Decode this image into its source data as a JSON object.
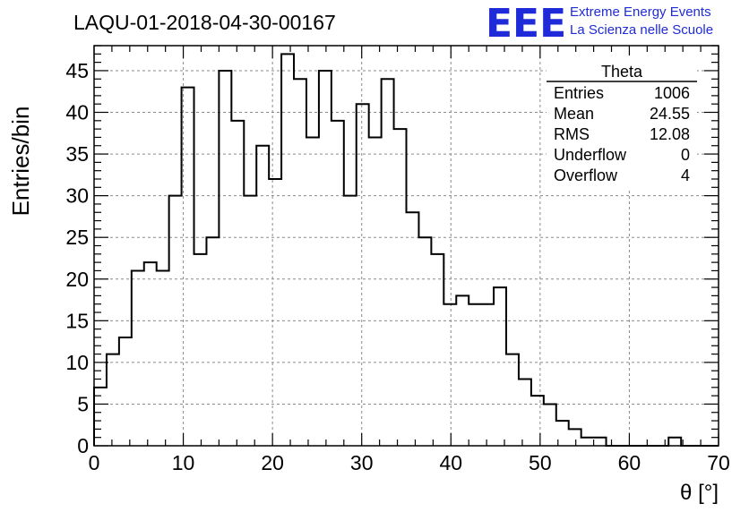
{
  "chart_data": {
    "type": "histogram",
    "title": "LAQU-01-2018-04-30-00167",
    "xlabel": "θ [°]",
    "ylabel": "Entries/bin",
    "xlim": [
      0,
      70
    ],
    "ylim": [
      0,
      48
    ],
    "bin_width": 1.4,
    "x_ticks": [
      0,
      10,
      20,
      30,
      40,
      50,
      60,
      70
    ],
    "y_ticks": [
      0,
      5,
      10,
      15,
      20,
      25,
      30,
      35,
      40,
      45
    ],
    "grid": true,
    "bin_edges_start": 0,
    "values": [
      7,
      11,
      13,
      21,
      22,
      21,
      30,
      43,
      23,
      25,
      45,
      39,
      30,
      36,
      32,
      47,
      44,
      37,
      45,
      39,
      30,
      41,
      37,
      44,
      38,
      28,
      25,
      23,
      17,
      18,
      17,
      17,
      19,
      11,
      8,
      6,
      5,
      3,
      2,
      1,
      1,
      0,
      0,
      0,
      0,
      0,
      1,
      0,
      0,
      0
    ],
    "color": "#000000"
  },
  "stats_box": {
    "title": "Theta",
    "rows": [
      {
        "label": "Entries",
        "value": "1006"
      },
      {
        "label": "Mean",
        "value": "24.55"
      },
      {
        "label": "RMS",
        "value": "12.08"
      },
      {
        "label": "Underflow",
        "value": "0"
      },
      {
        "label": "Overflow",
        "value": "4"
      }
    ]
  },
  "logo": {
    "letters": "EEE",
    "line1": "Extreme Energy Events",
    "line2": "La Scienza nelle Scuole",
    "color": "#1f2bd8"
  }
}
